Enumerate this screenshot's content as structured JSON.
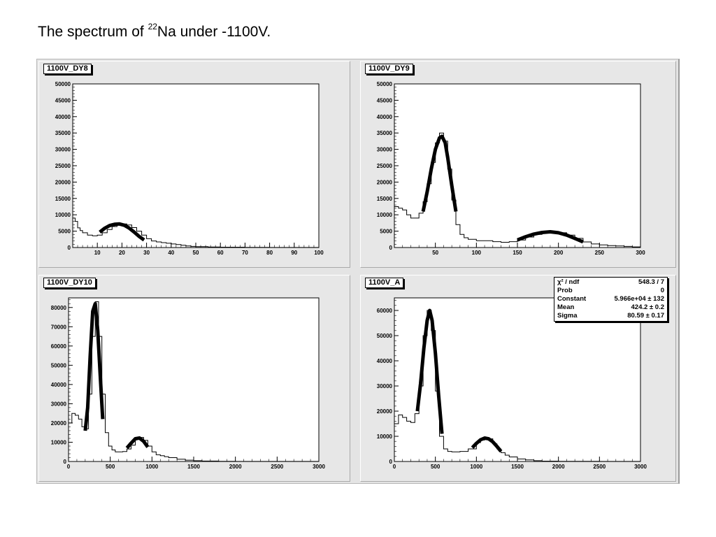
{
  "title": {
    "prefix": "The spectrum of ",
    "superscript": "22",
    "suffix": "Na under -1100V."
  },
  "chart_data": [
    {
      "type": "histogram",
      "title": "1100V_DY8",
      "xlim": [
        0,
        100
      ],
      "ylim": [
        0,
        50000
      ],
      "xticks": [
        10,
        20,
        30,
        40,
        50,
        60,
        70,
        80,
        90,
        100
      ],
      "yticks": [
        0,
        5000,
        10000,
        15000,
        20000,
        25000,
        30000,
        35000,
        40000,
        45000,
        50000
      ],
      "series": [
        {
          "x": [
            0,
            1,
            2,
            3,
            4,
            6,
            8,
            10,
            12,
            14,
            16,
            18,
            20,
            22,
            24,
            26,
            28,
            30,
            32,
            34,
            36,
            38,
            40,
            42,
            44,
            46,
            48,
            50,
            55,
            60,
            70,
            80,
            90,
            100
          ],
          "y": [
            9000,
            8000,
            6000,
            5200,
            4500,
            3800,
            3600,
            3800,
            4500,
            5500,
            6400,
            7000,
            7200,
            6900,
            6100,
            5000,
            3800,
            2700,
            2000,
            1700,
            1500,
            1300,
            1100,
            900,
            700,
            500,
            350,
            250,
            150,
            100,
            60,
            30,
            20,
            10
          ]
        },
        {
          "fit": true,
          "x": [
            11,
            13,
            15,
            17,
            19,
            21,
            23,
            25,
            27,
            29
          ],
          "y": [
            4700,
            5900,
            6700,
            7100,
            7200,
            6800,
            5900,
            4700,
            3400,
            2300
          ]
        }
      ]
    },
    {
      "type": "histogram",
      "title": "1100V_DY9",
      "xlim": [
        0,
        300
      ],
      "ylim": [
        0,
        50000
      ],
      "xticks": [
        50,
        100,
        150,
        200,
        250,
        300
      ],
      "yticks": [
        0,
        5000,
        10000,
        15000,
        20000,
        25000,
        30000,
        35000,
        40000,
        45000,
        50000
      ],
      "series": [
        {
          "x": [
            0,
            5,
            10,
            15,
            20,
            25,
            30,
            35,
            40,
            45,
            50,
            55,
            60,
            65,
            70,
            75,
            80,
            85,
            90,
            100,
            110,
            120,
            130,
            140,
            150,
            160,
            170,
            180,
            190,
            200,
            210,
            220,
            230,
            240,
            250,
            260,
            270,
            280,
            290,
            300
          ],
          "y": [
            12500,
            12000,
            11500,
            10000,
            9000,
            9000,
            10500,
            14000,
            19500,
            26000,
            32000,
            35000,
            32500,
            24000,
            14500,
            7000,
            4000,
            3000,
            2500,
            2100,
            2100,
            1800,
            1600,
            1800,
            2300,
            3200,
            4000,
            4600,
            4800,
            4500,
            3800,
            2800,
            1700,
            1100,
            800,
            600,
            500,
            350,
            200,
            100
          ]
        },
        {
          "fit": true,
          "x": [
            35,
            40,
            45,
            50,
            55,
            58,
            62,
            65,
            70,
            75
          ],
          "y": [
            11000,
            17000,
            24000,
            30000,
            33500,
            34000,
            32000,
            27500,
            19000,
            11000
          ]
        },
        {
          "fit": true,
          "x": [
            150,
            160,
            170,
            180,
            190,
            200,
            210,
            220,
            230
          ],
          "y": [
            2300,
            3300,
            4100,
            4600,
            4800,
            4500,
            3800,
            2800,
            1700
          ]
        }
      ]
    },
    {
      "type": "histogram",
      "title": "1100V_DY10",
      "xlim": [
        0,
        3000
      ],
      "ylim": [
        0,
        85000
      ],
      "xticks": [
        0,
        500,
        1000,
        1500,
        2000,
        2500,
        3000
      ],
      "yticks": [
        0,
        10000,
        20000,
        30000,
        40000,
        50000,
        60000,
        70000,
        80000
      ],
      "series": [
        {
          "x": [
            0,
            40,
            80,
            120,
            160,
            200,
            240,
            280,
            320,
            360,
            400,
            440,
            480,
            520,
            560,
            600,
            650,
            700,
            750,
            800,
            850,
            900,
            950,
            1000,
            1050,
            1100,
            1150,
            1200,
            1300,
            1400,
            1500,
            1600,
            1800,
            2000,
            2500,
            3000
          ],
          "y": [
            20000,
            25000,
            24000,
            22000,
            18000,
            17000,
            35000,
            65000,
            83000,
            65000,
            35000,
            15000,
            8000,
            6000,
            5000,
            5000,
            5200,
            6500,
            8500,
            11500,
            12500,
            11000,
            8000,
            5000,
            3500,
            3000,
            2500,
            2000,
            1200,
            700,
            400,
            200,
            100,
            50,
            20,
            10
          ]
        },
        {
          "fit": true,
          "x": [
            200,
            230,
            260,
            290,
            320,
            350,
            380,
            410
          ],
          "y": [
            16000,
            28000,
            55000,
            78000,
            82000,
            68000,
            45000,
            22000
          ]
        },
        {
          "fit": true,
          "x": [
            700,
            750,
            800,
            850,
            900,
            950
          ],
          "y": [
            7000,
            9500,
            11800,
            12200,
            10500,
            7500
          ]
        }
      ]
    },
    {
      "type": "histogram",
      "title": "1100V_A",
      "xlim": [
        0,
        3000
      ],
      "ylim": [
        0,
        65000
      ],
      "xticks": [
        0,
        500,
        1000,
        1500,
        2000,
        2500,
        3000
      ],
      "yticks": [
        0,
        10000,
        20000,
        30000,
        40000,
        50000,
        60000
      ],
      "stats": [
        {
          "label": "χ² / ndf",
          "value": "548.3 / 7"
        },
        {
          "label": "Prob",
          "value": "0"
        },
        {
          "label": "Constant",
          "value": "5.966e+04 ± 132"
        },
        {
          "label": "Mean",
          "value": "424.2 ± 0.2"
        },
        {
          "label": "Sigma",
          "value": "80.59 ± 0.17"
        }
      ],
      "series": [
        {
          "x": [
            0,
            50,
            100,
            150,
            200,
            250,
            300,
            350,
            400,
            450,
            500,
            550,
            600,
            650,
            700,
            800,
            900,
            1000,
            1050,
            1100,
            1150,
            1200,
            1250,
            1300,
            1350,
            1400,
            1500,
            1600,
            1700,
            1800,
            2000,
            2500,
            3000
          ],
          "y": [
            15000,
            18500,
            17500,
            16000,
            15500,
            19000,
            30000,
            50000,
            60000,
            52000,
            28000,
            10000,
            5000,
            4000,
            3800,
            4000,
            5000,
            7500,
            8500,
            9200,
            9000,
            7000,
            5000,
            3500,
            2500,
            1800,
            1000,
            600,
            300,
            150,
            50,
            20,
            10
          ]
        },
        {
          "fit": true,
          "x": [
            280,
            320,
            360,
            400,
            430,
            460,
            500,
            540,
            580
          ],
          "y": [
            20000,
            31000,
            45000,
            56000,
            60000,
            56000,
            43000,
            26000,
            11000
          ]
        },
        {
          "fit": true,
          "x": [
            950,
            1000,
            1050,
            1100,
            1150,
            1200,
            1250,
            1300
          ],
          "y": [
            5500,
            7200,
            8600,
            9300,
            9000,
            7800,
            6000,
            4000
          ]
        }
      ]
    }
  ]
}
